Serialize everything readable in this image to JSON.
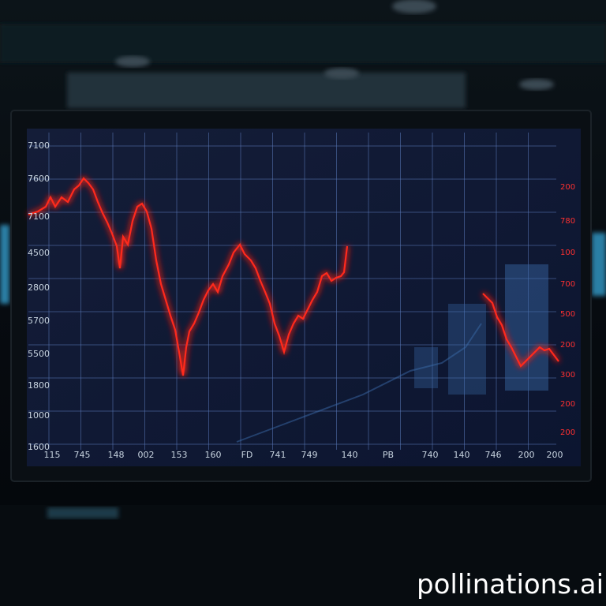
{
  "screen": {
    "left_labels": [
      "7100",
      "7600",
      "7100",
      "4500",
      "2800",
      "5700",
      "5500",
      "1800",
      "1000",
      "1600"
    ],
    "bottom_labels": [
      "115",
      "745",
      "148",
      "002",
      "153",
      "160",
      "FD",
      "741",
      "749",
      "140",
      "PB",
      "740",
      "140",
      "746",
      "200",
      "200"
    ],
    "right_labels": [
      "200",
      "780",
      "100",
      "700",
      "500",
      "200",
      "300",
      "200",
      "200"
    ]
  },
  "watermark": "pollinations.ai"
}
